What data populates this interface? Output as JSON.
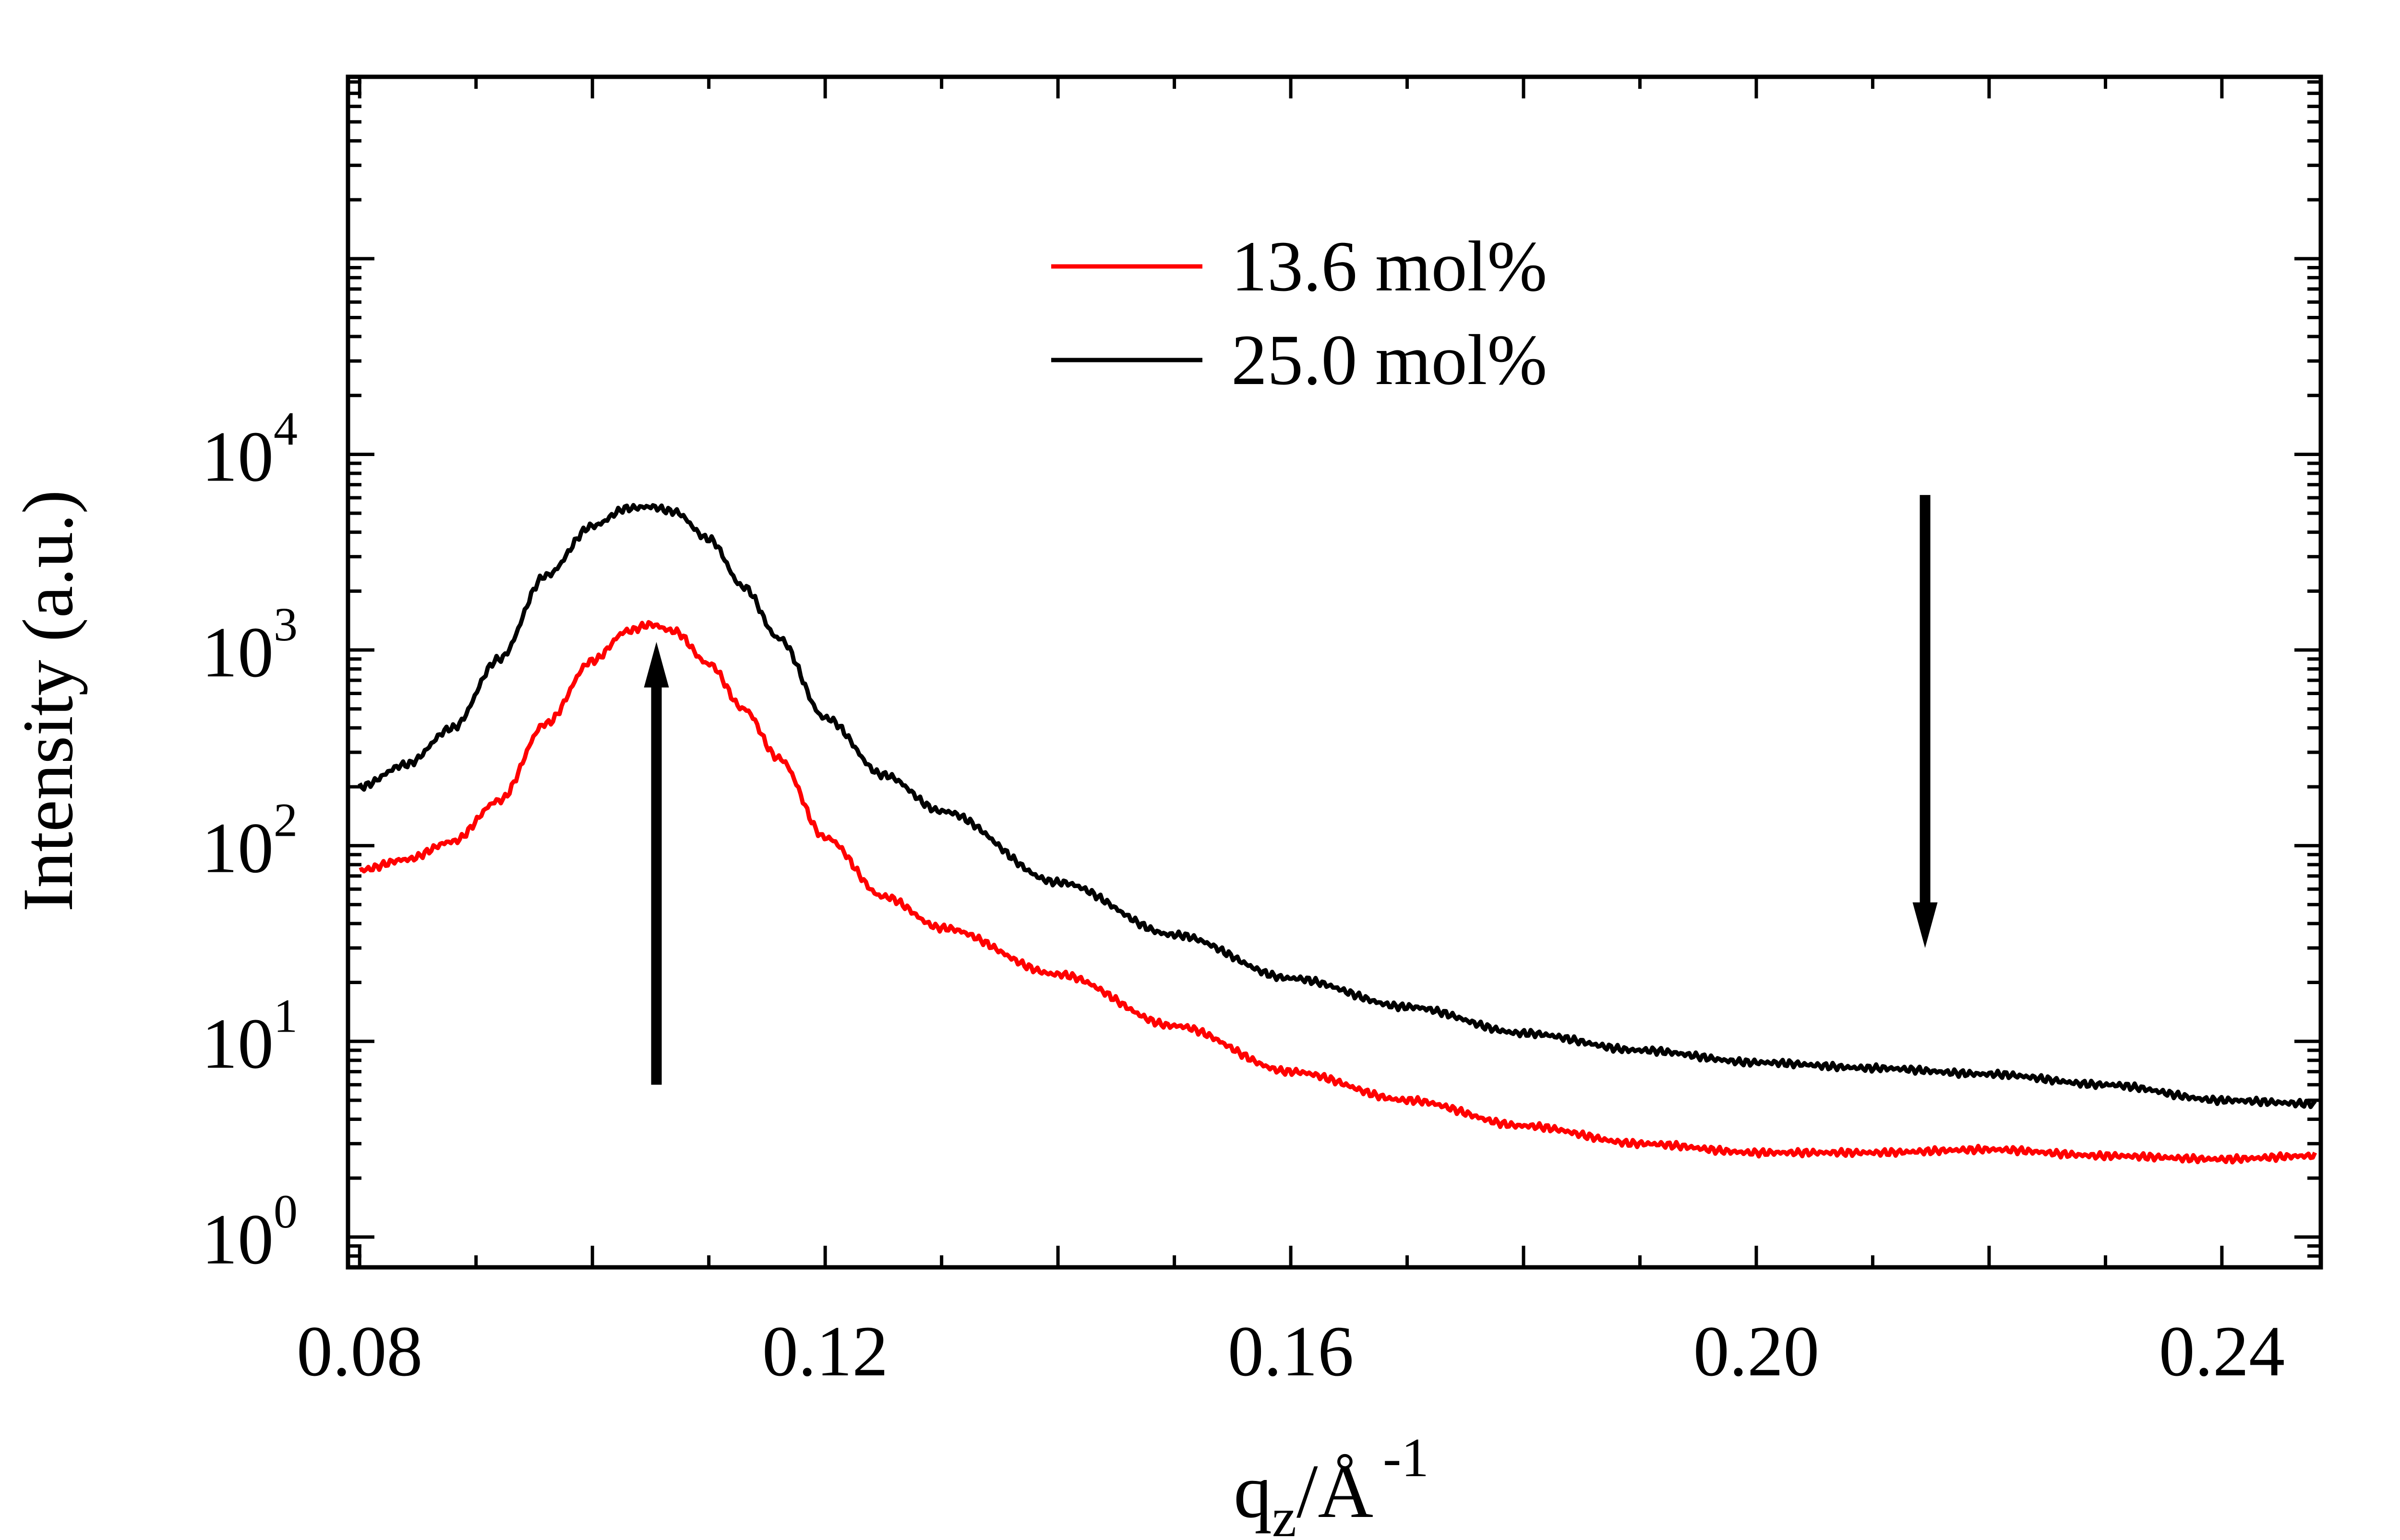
{
  "chart_data": {
    "type": "line",
    "title": "",
    "xlabel": {
      "main": "q",
      "sub": "z",
      "rest": "/Å",
      "sup": "-1"
    },
    "ylabel": "Intensity (a.u.)",
    "xscale": "linear",
    "yscale": "log",
    "xlim": [
      0.079,
      0.2485
    ],
    "ylim": [
      0.7,
      850000
    ],
    "xticks": [
      {
        "value": 0.08,
        "label": "0.08"
      },
      {
        "value": 0.12,
        "label": "0.12"
      },
      {
        "value": 0.16,
        "label": "0.16"
      },
      {
        "value": 0.2,
        "label": "0.20"
      },
      {
        "value": 0.24,
        "label": "0.24"
      }
    ],
    "yticks": [
      {
        "value": 1,
        "base": "10",
        "exp": "0"
      },
      {
        "value": 10,
        "base": "10",
        "exp": "1"
      },
      {
        "value": 100,
        "base": "10",
        "exp": "2"
      },
      {
        "value": 1000,
        "base": "10",
        "exp": "3"
      },
      {
        "value": 10000,
        "base": "10",
        "exp": "4"
      }
    ],
    "legend_position": "top-center",
    "series": [
      {
        "name": "13.6 mol%",
        "color": "#ff0000",
        "x": [
          0.08,
          0.084,
          0.088,
          0.092,
          0.096,
          0.1,
          0.103,
          0.105,
          0.107,
          0.11,
          0.113,
          0.116,
          0.12,
          0.125,
          0.13,
          0.14,
          0.15,
          0.16,
          0.17,
          0.18,
          0.19,
          0.2,
          0.21,
          0.22,
          0.23,
          0.24,
          0.248
        ],
        "y": [
          75,
          85,
          105,
          170,
          420,
          880,
          1250,
          1350,
          1250,
          850,
          500,
          280,
          110,
          55,
          38,
          22,
          12,
          7,
          5,
          3.7,
          3.0,
          2.7,
          2.7,
          2.8,
          2.6,
          2.5,
          2.6
        ]
      },
      {
        "name": "25.0 mol%",
        "color": "#000000",
        "x": [
          0.08,
          0.084,
          0.088,
          0.092,
          0.096,
          0.1,
          0.103,
          0.105,
          0.107,
          0.11,
          0.113,
          0.116,
          0.12,
          0.125,
          0.13,
          0.14,
          0.15,
          0.16,
          0.17,
          0.18,
          0.19,
          0.2,
          0.21,
          0.22,
          0.23,
          0.24,
          0.248
        ],
        "y": [
          200,
          260,
          400,
          900,
          2400,
          4300,
          5300,
          5400,
          5100,
          3700,
          2100,
          1150,
          450,
          230,
          150,
          65,
          35,
          21,
          15,
          11,
          9,
          7.8,
          7.3,
          6.8,
          6,
          5,
          4.8
        ]
      }
    ],
    "annotations": [
      {
        "type": "arrow",
        "direction": "up",
        "x": 0.1055,
        "y_from": 6,
        "y_to": 1100
      },
      {
        "type": "arrow",
        "direction": "down",
        "x": 0.2145,
        "y_from": 6200,
        "y_to": 30
      }
    ]
  }
}
